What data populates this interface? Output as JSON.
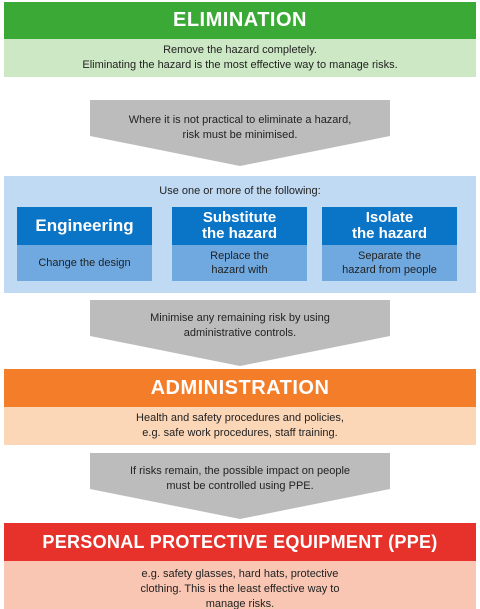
{
  "elimination": {
    "title": "ELIMINATION",
    "lines": [
      "Remove the hazard completely.",
      "Eliminating the hazard is the most effective way to manage risks."
    ]
  },
  "arrow1": {
    "lines": [
      "Where it is not practical to eliminate a hazard,",
      "risk must be minimised."
    ]
  },
  "substitution": {
    "intro": "Use one or more of the following:",
    "cards": [
      {
        "title": [
          "Engineering"
        ],
        "body": [
          "Change the design"
        ]
      },
      {
        "title": [
          "Substitute",
          "the hazard"
        ],
        "body": [
          "Replace the",
          "hazard with"
        ]
      },
      {
        "title": [
          "Isolate",
          "the hazard"
        ],
        "body": [
          "Separate the",
          "hazard from people"
        ]
      }
    ]
  },
  "arrow2": {
    "lines": [
      "Minimise any remaining risk by using",
      "administrative controls."
    ]
  },
  "administration": {
    "title": "ADMINISTRATION",
    "lines": [
      "Health and safety procedures and policies,",
      "e.g. safe work procedures, staff training."
    ]
  },
  "arrow3": {
    "lines": [
      "If risks remain, the possible impact on people",
      "must be controlled using PPE."
    ]
  },
  "ppe": {
    "title": "PERSONAL PROTECTIVE EQUIPMENT (PPE)",
    "lines": [
      "e.g. safety glasses, hard hats, protective",
      "clothing. This is the least effective way to",
      "manage risks."
    ]
  },
  "colors": {
    "elimination": "#3aa935",
    "elimination_light": "#cde8c4",
    "engineering": "#0a74c6",
    "engineering_light": "#6fa9e0",
    "panel": "#c0daf3",
    "administration": "#f37d28",
    "administration_light": "#fbd6b7",
    "ppe": "#e6322b",
    "ppe_light": "#f8c6b3",
    "arrow": "#bcbcbc"
  }
}
